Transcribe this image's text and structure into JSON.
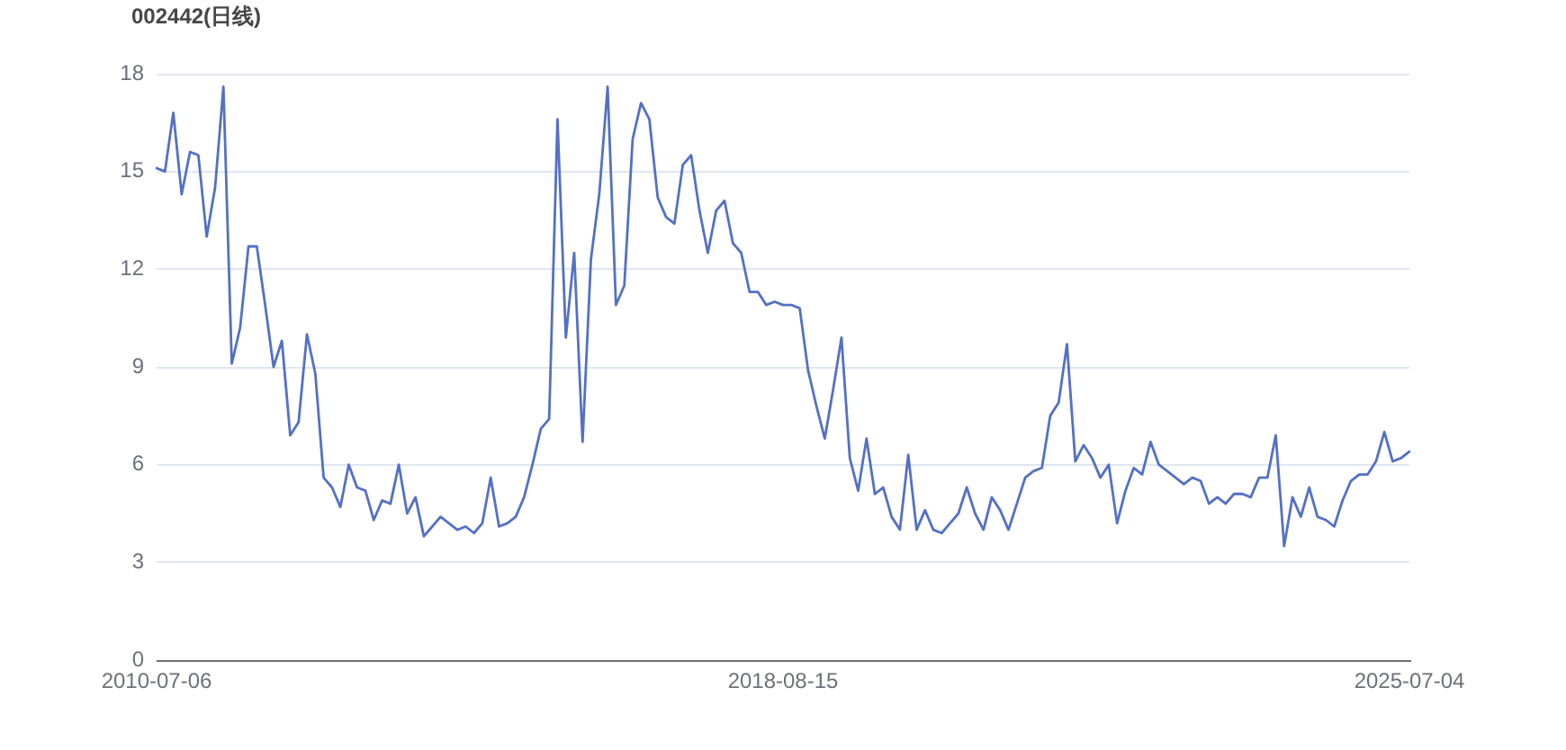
{
  "chart_data": {
    "type": "line",
    "title": "002442(日线)",
    "categories": [
      "2010-07-06",
      null,
      null,
      null,
      null,
      null,
      null,
      null,
      null,
      null,
      null,
      null,
      null,
      null,
      null,
      null,
      null,
      null,
      null,
      null,
      null,
      null,
      null,
      null,
      null,
      null,
      null,
      null,
      null,
      null,
      null,
      null,
      null,
      null,
      null,
      null,
      null,
      null,
      null,
      null,
      null,
      null,
      null,
      null,
      null,
      null,
      null,
      null,
      null,
      null,
      null,
      null,
      null,
      null,
      null,
      null,
      null,
      null,
      null,
      null,
      null,
      null,
      null,
      null,
      null,
      null,
      null,
      null,
      null,
      null,
      null,
      null,
      null,
      null,
      null,
      "2018-08-15",
      null,
      null,
      null,
      null,
      null,
      null,
      null,
      null,
      null,
      null,
      null,
      null,
      null,
      null,
      null,
      null,
      null,
      null,
      null,
      null,
      null,
      null,
      null,
      null,
      null,
      null,
      null,
      null,
      null,
      null,
      null,
      null,
      null,
      null,
      null,
      null,
      null,
      null,
      null,
      null,
      null,
      null,
      null,
      null,
      null,
      null,
      null,
      null,
      null,
      null,
      null,
      null,
      null,
      null,
      null,
      null,
      null,
      null,
      null,
      null,
      null,
      null,
      null,
      null,
      null,
      null,
      null,
      null,
      null,
      null,
      null,
      null,
      null,
      null,
      "2025-07-04"
    ],
    "values": [
      15.1,
      15.0,
      16.8,
      14.3,
      15.6,
      15.5,
      13.0,
      14.5,
      17.6,
      9.1,
      10.2,
      12.7,
      12.7,
      10.9,
      9.0,
      9.8,
      6.9,
      7.3,
      10.0,
      8.8,
      5.6,
      5.3,
      4.7,
      6.0,
      5.3,
      5.2,
      4.3,
      4.9,
      4.8,
      6.0,
      4.5,
      5.0,
      3.8,
      4.1,
      4.4,
      4.2,
      4.0,
      4.1,
      3.9,
      4.2,
      5.6,
      4.1,
      4.2,
      4.4,
      5.0,
      6.0,
      7.1,
      7.4,
      16.6,
      9.9,
      12.5,
      6.7,
      12.3,
      14.3,
      17.6,
      10.9,
      11.5,
      16.0,
      17.1,
      16.6,
      14.2,
      13.6,
      13.4,
      15.2,
      15.5,
      13.8,
      12.5,
      13.8,
      14.1,
      12.8,
      12.5,
      11.3,
      11.3,
      10.9,
      11.0,
      10.9,
      10.9,
      10.8,
      8.9,
      7.8,
      6.8,
      8.3,
      9.9,
      6.2,
      5.2,
      6.8,
      5.1,
      5.3,
      4.4,
      4.0,
      6.3,
      4.0,
      4.6,
      4.0,
      3.9,
      4.2,
      4.5,
      5.3,
      4.5,
      4.0,
      5.0,
      4.6,
      4.0,
      4.8,
      5.6,
      5.8,
      5.9,
      7.5,
      7.9,
      9.7,
      6.1,
      6.6,
      6.2,
      5.6,
      6.0,
      4.2,
      5.2,
      5.9,
      5.7,
      6.7,
      6.0,
      5.8,
      5.6,
      5.4,
      5.6,
      5.5,
      4.8,
      5.0,
      4.8,
      5.1,
      5.1,
      5.0,
      5.6,
      5.6,
      6.9,
      3.5,
      5.0,
      4.4,
      5.3,
      4.4,
      4.3,
      4.1,
      4.9,
      5.5,
      5.7,
      5.7,
      6.1,
      7.0,
      6.1,
      6.2,
      6.4
    ],
    "color": "#5470c6",
    "ylim": [
      0,
      18
    ],
    "yticks": [
      0,
      3,
      6,
      9,
      12,
      15,
      18
    ],
    "grid": "y",
    "marker": "none"
  }
}
